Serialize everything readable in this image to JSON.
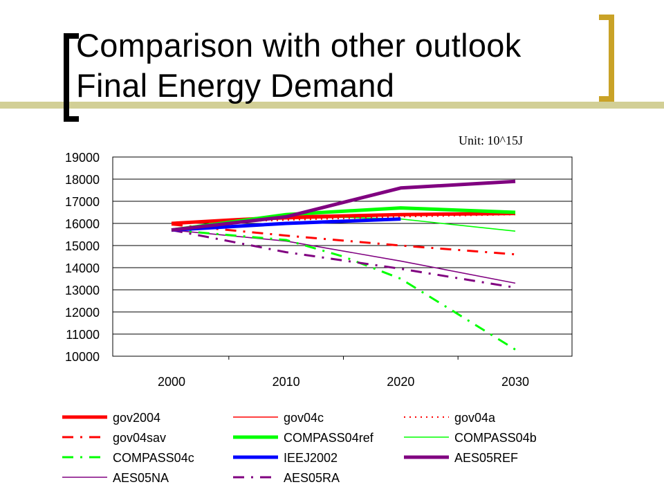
{
  "slide": {
    "title_line1": "Comparison with other outlook",
    "title_line2": "Final Energy Demand",
    "unit_label": "Unit: 10^15J",
    "accent_color": "#C9A227",
    "bar_color": "#D2CF96"
  },
  "chart_data": {
    "type": "line",
    "title": "",
    "xlabel": "",
    "ylabel": "",
    "x_categories": [
      "2000",
      "2010",
      "2020",
      "2030"
    ],
    "ylim": [
      10000,
      19000
    ],
    "yticks": [
      "19000",
      "18000",
      "17000",
      "16000",
      "15000",
      "14000",
      "13000",
      "12000",
      "11000",
      "10000"
    ],
    "grid": true,
    "legend_position": "bottom",
    "series": [
      {
        "name": "gov2004",
        "color": "#FF0000",
        "style": "solid-thick",
        "points": [
          [
            2000,
            16000
          ],
          [
            2005,
            16150
          ],
          [
            2010,
            16280
          ],
          [
            2020,
            16400
          ],
          [
            2030,
            16450
          ]
        ]
      },
      {
        "name": "gov04c",
        "color": "#FF0000",
        "style": "solid-thin",
        "points": [
          [
            2000,
            16000
          ],
          [
            2010,
            16200
          ],
          [
            2020,
            16350
          ],
          [
            2030,
            16450
          ]
        ]
      },
      {
        "name": "gov04a",
        "color": "#FF0000",
        "style": "dotted",
        "points": [
          [
            2000,
            16000
          ],
          [
            2010,
            16150
          ],
          [
            2020,
            16300
          ],
          [
            2030,
            16400
          ]
        ]
      },
      {
        "name": "gov04sav",
        "color": "#FF0000",
        "style": "dashdot",
        "points": [
          [
            2000,
            15950
          ],
          [
            2010,
            15450
          ],
          [
            2020,
            15000
          ],
          [
            2030,
            14600
          ]
        ]
      },
      {
        "name": "COMPASS04ref",
        "color": "#00FF00",
        "style": "solid-thick",
        "points": [
          [
            2000,
            15700
          ],
          [
            2010,
            16400
          ],
          [
            2020,
            16700
          ],
          [
            2030,
            16500
          ]
        ]
      },
      {
        "name": "COMPASS04b",
        "color": "#00FF00",
        "style": "solid-thin",
        "points": [
          [
            2000,
            15700
          ],
          [
            2010,
            16350
          ],
          [
            2020,
            16200
          ],
          [
            2030,
            15650
          ]
        ]
      },
      {
        "name": "COMPASS04c",
        "color": "#00FF00",
        "style": "dashdot",
        "points": [
          [
            2000,
            15700
          ],
          [
            2010,
            15250
          ],
          [
            2015,
            14500
          ],
          [
            2020,
            13500
          ],
          [
            2025,
            11900
          ],
          [
            2030,
            10300
          ]
        ]
      },
      {
        "name": "IEEJ2002",
        "color": "#0000FF",
        "style": "solid-thick",
        "points": [
          [
            2000,
            15700
          ],
          [
            2010,
            16000
          ],
          [
            2020,
            16200
          ]
        ]
      },
      {
        "name": "AES05REF",
        "color": "#800080",
        "style": "solid-thick",
        "points": [
          [
            2000,
            15700
          ],
          [
            2010,
            16300
          ],
          [
            2015,
            16950
          ],
          [
            2020,
            17600
          ],
          [
            2030,
            17900
          ]
        ]
      },
      {
        "name": "AES05NA",
        "color": "#800080",
        "style": "solid-thin",
        "points": [
          [
            2000,
            15700
          ],
          [
            2010,
            15200
          ],
          [
            2020,
            14300
          ],
          [
            2030,
            13300
          ]
        ]
      },
      {
        "name": "AES05RA",
        "color": "#800080",
        "style": "dashdot",
        "points": [
          [
            2000,
            15700
          ],
          [
            2010,
            14700
          ],
          [
            2020,
            13950
          ],
          [
            2030,
            13100
          ]
        ]
      }
    ]
  }
}
